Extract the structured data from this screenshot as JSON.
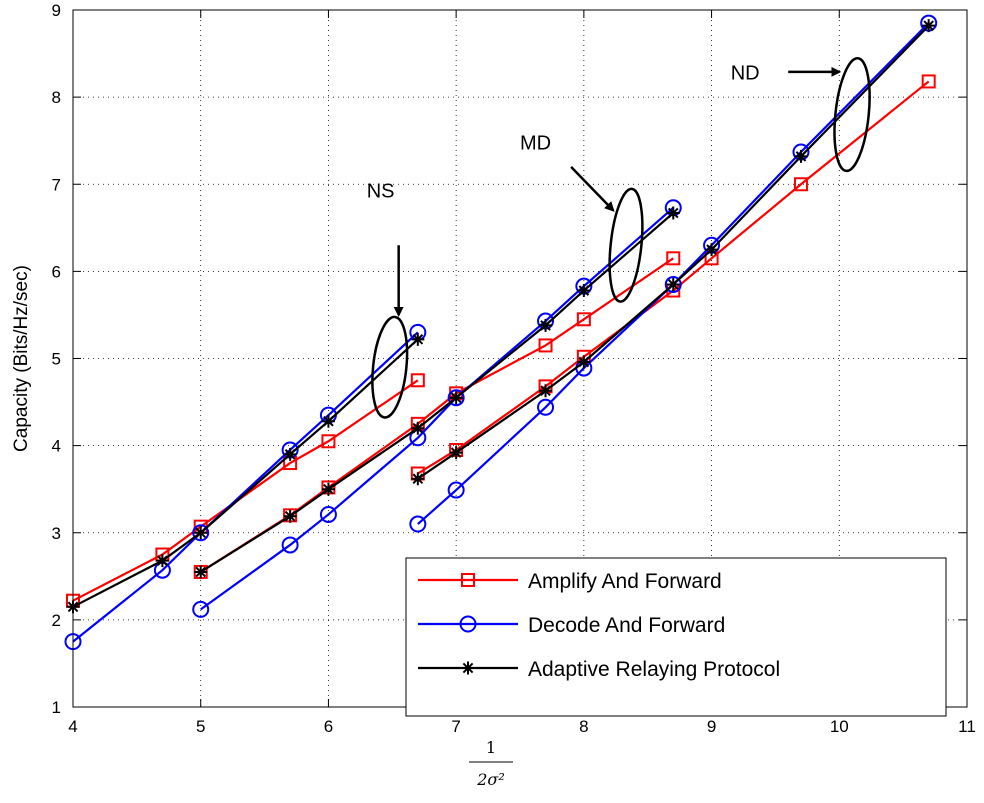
{
  "chart_data": {
    "type": "line",
    "xlabel": "1/(2σ²)",
    "ylabel": "Capacity (Bits/Hz/sec)",
    "xlim": [
      4,
      11
    ],
    "ylim": [
      1,
      9
    ],
    "x_ticks": [
      4,
      5,
      6,
      7,
      8,
      9,
      10,
      11
    ],
    "y_ticks": [
      1,
      2,
      3,
      4,
      5,
      6,
      7,
      8,
      9
    ],
    "grid": true,
    "legend_position": "bottom-right",
    "series": [
      {
        "name": "Amplify And Forward",
        "color": "#ff0000",
        "marker": "square",
        "segments": [
          {
            "x": [
              4,
              4.7,
              5,
              5.7,
              6,
              6.7
            ],
            "y": [
              2.22,
              2.75,
              3.07,
              3.8,
              4.05,
              4.75
            ]
          },
          {
            "x": [
              5,
              5.7,
              6,
              6.7,
              7,
              7.7,
              8,
              8.7
            ],
            "y": [
              2.55,
              3.2,
              3.52,
              4.25,
              4.6,
              5.15,
              5.45,
              6.15
            ]
          },
          {
            "x": [
              6.7,
              7,
              7.7,
              8,
              8.7,
              9,
              9.7,
              10.7
            ],
            "y": [
              3.68,
              3.95,
              4.68,
              5.02,
              5.78,
              6.15,
              7.0,
              8.18
            ]
          }
        ]
      },
      {
        "name": "Decode And Forward",
        "color": "#0000ff",
        "marker": "circle",
        "segments": [
          {
            "x": [
              4,
              4.7,
              5,
              5.7,
              6,
              6.7
            ],
            "y": [
              1.75,
              2.57,
              3.0,
              3.95,
              4.35,
              5.3
            ]
          },
          {
            "x": [
              5,
              5.7,
              6,
              6.7,
              7,
              7.7,
              8,
              8.7
            ],
            "y": [
              2.12,
              2.86,
              3.21,
              4.09,
              4.55,
              5.43,
              5.83,
              6.73
            ]
          },
          {
            "x": [
              6.7,
              7,
              7.7,
              8,
              8.7,
              9,
              9.7,
              10.7
            ],
            "y": [
              3.1,
              3.49,
              4.44,
              4.89,
              5.85,
              6.3,
              7.37,
              8.85
            ]
          }
        ]
      },
      {
        "name": "Adaptive Relaying Protocol",
        "color": "#000000",
        "marker": "star",
        "segments": [
          {
            "x": [
              4,
              4.7,
              5,
              5.7,
              6,
              6.7
            ],
            "y": [
              2.15,
              2.68,
              3.0,
              3.9,
              4.28,
              5.22
            ]
          },
          {
            "x": [
              5,
              5.7,
              6,
              6.7,
              7,
              7.7,
              8,
              8.7
            ],
            "y": [
              2.55,
              3.19,
              3.5,
              4.2,
              4.55,
              5.38,
              5.78,
              6.67
            ]
          },
          {
            "x": [
              6.7,
              7,
              7.7,
              8,
              8.7,
              9,
              9.7,
              10.7
            ],
            "y": [
              3.62,
              3.92,
              4.63,
              4.96,
              5.85,
              6.25,
              7.32,
              8.82
            ]
          }
        ]
      }
    ],
    "annotations": [
      {
        "text": "NS",
        "ellipse": {
          "cx": 6.48,
          "cy": 4.9,
          "rx": 0.13,
          "ry": 0.58
        },
        "text_at": [
          6.3,
          6.85
        ],
        "arrow_from": [
          6.55,
          6.3
        ],
        "arrow_to": [
          6.55,
          5.5
        ]
      },
      {
        "text": "MD",
        "ellipse": {
          "cx": 8.33,
          "cy": 6.3,
          "rx": 0.12,
          "ry": 0.65
        },
        "text_at": [
          7.5,
          7.4
        ],
        "arrow_from": [
          7.9,
          7.2
        ],
        "arrow_to": [
          8.23,
          6.7
        ]
      },
      {
        "text": "ND",
        "ellipse": {
          "cx": 10.1,
          "cy": 7.8,
          "rx": 0.13,
          "ry": 0.65
        },
        "text_at": [
          9.15,
          8.2
        ],
        "arrow_from": [
          9.6,
          8.29
        ],
        "arrow_to": [
          10.0,
          8.29
        ]
      }
    ]
  }
}
